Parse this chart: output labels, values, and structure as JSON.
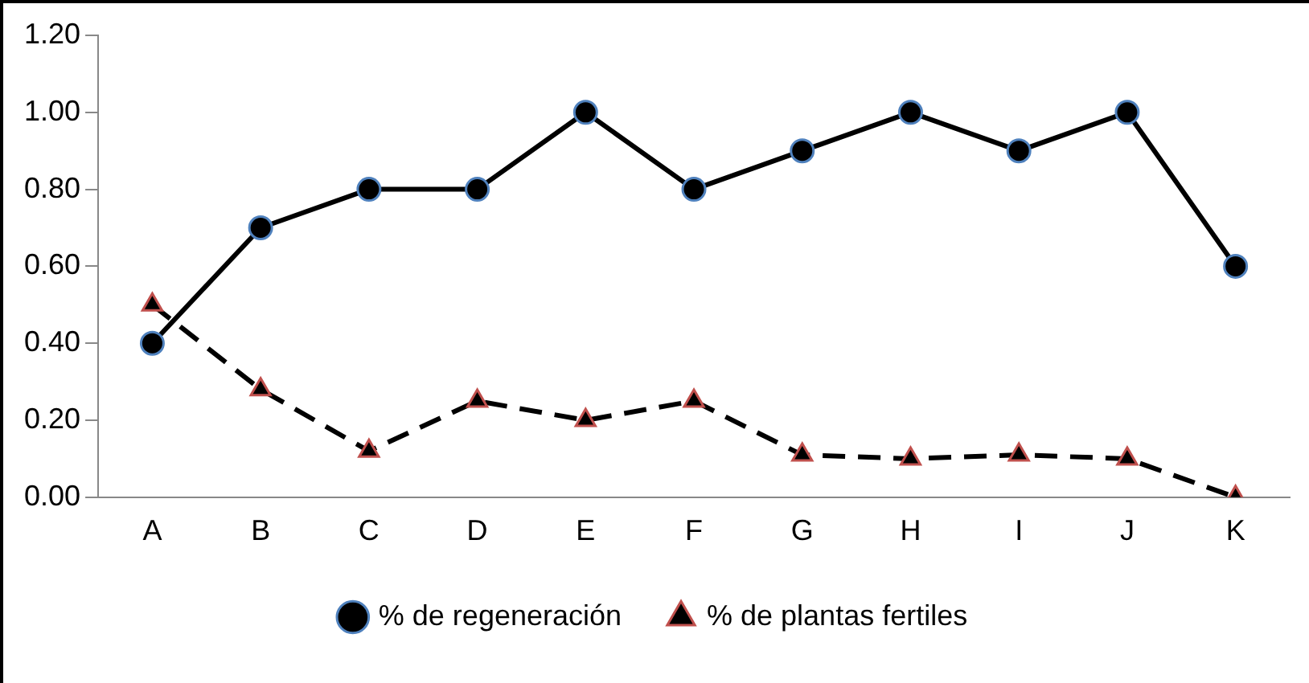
{
  "chart_data": {
    "type": "line",
    "categories": [
      "A",
      "B",
      "C",
      "D",
      "E",
      "F",
      "G",
      "H",
      "I",
      "J",
      "K"
    ],
    "series": [
      {
        "name": "% de regeneración",
        "color": "#000000",
        "marker": "circle",
        "line_style": "solid",
        "values": [
          0.4,
          0.7,
          0.8,
          0.8,
          1.0,
          0.8,
          0.9,
          1.0,
          0.9,
          1.0,
          0.6
        ]
      },
      {
        "name": "% de plantas fertiles",
        "color": "#000000",
        "marker": "triangle",
        "line_style": "dashed",
        "values": [
          0.5,
          0.28,
          0.12,
          0.25,
          0.2,
          0.25,
          0.11,
          0.1,
          0.11,
          0.1,
          0.0
        ]
      }
    ],
    "ylim": [
      0,
      1.2
    ],
    "yticks": [
      {
        "value": 0,
        "label": "0.00"
      },
      {
        "value": 0.2,
        "label": "0.20"
      },
      {
        "value": 0.4,
        "label": "0.40"
      },
      {
        "value": 0.6,
        "label": "0.60"
      },
      {
        "value": 0.8,
        "label": "0.80"
      },
      {
        "value": 1,
        "label": "1.00"
      },
      {
        "value": 1.2,
        "label": "1.20"
      }
    ],
    "grid": false,
    "legend": "bottom"
  }
}
